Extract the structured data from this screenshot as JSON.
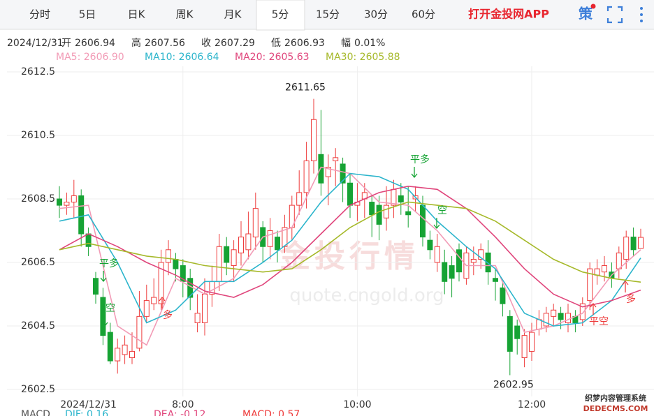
{
  "tabs": [
    "分时",
    "5日",
    "日K",
    "周K",
    "月K",
    "5分",
    "15分",
    "30分",
    "60分"
  ],
  "active_tab": 5,
  "app_link": "打开金投网APP",
  "strategy_icon": "策",
  "info": {
    "date": "2024/12/31",
    "open_label": "开",
    "high_label": "高",
    "close_label": "收",
    "low_label": "低",
    "change_label": "幅",
    "change": "0.01%"
  },
  "chart_data": {
    "type": "candlestick",
    "ylim": [
      2602.5,
      2612.5
    ],
    "yticks": [
      2612.5,
      2610.5,
      2608.5,
      2606.5,
      2604.5,
      2602.5
    ],
    "xlim": [
      -0.5,
      80.5
    ],
    "xticks": [
      {
        "value": 4,
        "label": "2024/12/31"
      },
      {
        "value": 17,
        "label": "8:00"
      },
      {
        "value": 41,
        "label": "10:00"
      },
      {
        "value": 65,
        "label": "12:00"
      }
    ],
    "grid": true,
    "up_color": "#ee3b3b",
    "down_color": "#16a334",
    "open": [
      2608.5,
      2608.3,
      2608.4,
      2608.6,
      2607.4,
      2606.0,
      2605.4,
      2604.3,
      2603.4,
      2603.6,
      2603.5,
      2603.8,
      2604.8,
      2605.2,
      2605.2,
      2606.5,
      2606.6,
      2606.4,
      2606.0,
      2604.6,
      2604.6,
      2605.5,
      2605.9,
      2607.0,
      2606.4,
      2606.8,
      2606.9,
      2607.3,
      2607.6,
      2607.0,
      2607.3,
      2607.0,
      2607.6,
      2608.3,
      2608.7,
      2609.7,
      2609.9,
      2609.2,
      2609.7,
      2609.6,
      2609.0,
      2608.3,
      2608.5,
      2608.4,
      2608.3,
      2607.9,
      2608.3,
      2608.6,
      2608.1,
      2608.5,
      2608.3,
      2607.2,
      2606.5,
      2606.5,
      2606.4,
      2606.9,
      2606.0,
      2606.5,
      2606.6,
      2606.8,
      2606.0,
      2605.7,
      2604.8,
      2604.5,
      2603.5,
      2603.7,
      2604.4,
      2604.5,
      2604.8,
      2604.9,
      2604.6,
      2604.8,
      2604.7,
      2605.3,
      2606.1,
      2606.2,
      2606.2,
      2606.3,
      2606.6,
      2607.3,
      2606.94
    ],
    "close": [
      2608.3,
      2608.4,
      2608.6,
      2607.4,
      2607.0,
      2605.5,
      2604.2,
      2603.4,
      2603.8,
      2603.9,
      2603.7,
      2604.8,
      2605.3,
      2605.4,
      2606.5,
      2606.9,
      2606.3,
      2605.9,
      2605.4,
      2604.9,
      2605.5,
      2605.9,
      2607.0,
      2606.5,
      2606.9,
      2607.3,
      2607.4,
      2608.2,
      2607.0,
      2607.5,
      2606.9,
      2607.6,
      2608.3,
      2608.7,
      2609.7,
      2611.0,
      2609.0,
      2609.5,
      2609.8,
      2609.0,
      2608.3,
      2608.4,
      2608.7,
      2608.0,
      2607.7,
      2608.3,
      2608.8,
      2608.4,
      2608.0,
      2608.6,
      2607.3,
      2606.9,
      2607.0,
      2605.9,
      2606.0,
      2606.2,
      2606.8,
      2606.6,
      2606.9,
      2606.2,
      2605.9,
      2605.2,
      2603.7,
      2604.1,
      2604.2,
      2604.3,
      2604.7,
      2604.9,
      2605.0,
      2604.7,
      2604.9,
      2604.6,
      2605.2,
      2606.3,
      2606.3,
      2606.4,
      2606.0,
      2606.8,
      2607.3,
      2606.9,
      2607.29
    ],
    "high": [
      2608.9,
      2608.7,
      2609.1,
      2608.8,
      2607.6,
      2606.2,
      2605.7,
      2604.6,
      2604.1,
      2604.2,
      2604.3,
      2605.6,
      2605.8,
      2606.0,
      2606.9,
      2607.2,
      2606.8,
      2606.6,
      2606.3,
      2605.5,
      2606.0,
      2606.4,
      2607.4,
      2607.3,
      2607.2,
      2607.8,
      2608.1,
      2608.7,
      2607.8,
      2607.9,
      2607.5,
      2608.0,
      2608.6,
      2609.4,
      2610.3,
      2611.65,
      2611.3,
      2609.9,
      2610.1,
      2609.8,
      2609.3,
      2609.0,
      2609.0,
      2608.6,
      2608.6,
      2608.9,
      2609.1,
      2609.0,
      2608.9,
      2608.9,
      2608.6,
      2607.5,
      2607.4,
      2606.9,
      2606.7,
      2607.1,
      2607.0,
      2607.0,
      2607.1,
      2607.2,
      2606.3,
      2605.9,
      2605.0,
      2604.7,
      2604.4,
      2604.6,
      2605.0,
      2605.1,
      2605.2,
      2605.1,
      2605.2,
      2605.0,
      2605.4,
      2606.5,
      2606.6,
      2606.7,
      2606.5,
      2607.0,
      2607.5,
      2607.6,
      2607.56
    ],
    "low": [
      2607.9,
      2608.0,
      2607.9,
      2607.0,
      2606.7,
      2605.2,
      2603.9,
      2603.3,
      2603.0,
      2603.3,
      2603.3,
      2603.7,
      2604.6,
      2605.0,
      2605.0,
      2606.1,
      2605.9,
      2605.4,
      2605.0,
      2604.3,
      2604.2,
      2605.1,
      2605.6,
      2606.1,
      2605.9,
      2606.4,
      2606.6,
      2606.9,
      2606.5,
      2606.6,
      2606.5,
      2606.8,
      2607.2,
      2608.0,
      2608.2,
      2609.3,
      2608.6,
      2608.3,
      2608.9,
      2608.4,
      2607.9,
      2607.8,
      2607.9,
      2607.3,
      2607.2,
      2607.5,
      2607.9,
      2608.0,
      2607.6,
      2608.1,
      2607.0,
      2606.6,
      2606.2,
      2605.5,
      2605.4,
      2605.9,
      2605.8,
      2606.1,
      2606.3,
      2605.8,
      2605.3,
      2604.8,
      2602.95,
      2603.6,
      2603.2,
      2603.4,
      2604.2,
      2604.3,
      2604.5,
      2604.4,
      2604.3,
      2604.3,
      2604.5,
      2605.0,
      2605.8,
      2605.9,
      2605.7,
      2606.0,
      2606.3,
      2606.7,
      2606.93
    ],
    "max_index": 35,
    "min_index": 62,
    "ma_x": [
      0,
      4,
      8,
      12,
      16,
      20,
      24,
      28,
      32,
      36,
      40,
      44,
      48,
      52,
      56,
      60,
      64,
      68,
      72,
      76,
      80
    ],
    "series": [
      {
        "name": "MA5",
        "latest": "2606.90",
        "color": "#f29bb6",
        "values": [
          2608.2,
          2608.3,
          2604.5,
          2603.9,
          2606.0,
          2605.5,
          2606.0,
          2607.3,
          2607.6,
          2609.5,
          2609.3,
          2608.4,
          2608.3,
          2607.5,
          2606.4,
          2606.4,
          2604.3,
          2604.5,
          2604.9,
          2606.1,
          2606.9
        ]
      },
      {
        "name": "MA10",
        "latest": "2606.64",
        "color": "#2cb5cc",
        "values": [
          2607.8,
          2608.0,
          2606.5,
          2604.6,
          2605.0,
          2605.9,
          2605.9,
          2606.5,
          2607.2,
          2608.4,
          2609.3,
          2609.2,
          2608.8,
          2607.8,
          2607.0,
          2606.3,
          2604.9,
          2604.5,
          2604.6,
          2605.3,
          2606.64
        ]
      },
      {
        "name": "MA20",
        "latest": "2605.63",
        "color": "#e0467c",
        "values": [
          2606.9,
          2607.4,
          2607.0,
          2606.5,
          2606.1,
          2605.6,
          2605.4,
          2605.8,
          2606.5,
          2607.4,
          2608.3,
          2608.7,
          2608.9,
          2608.8,
          2608.2,
          2607.3,
          2606.3,
          2605.5,
          2605.1,
          2605.3,
          2605.63
        ]
      },
      {
        "name": "MA30",
        "latest": "2605.88",
        "color": "#a6b92a",
        "values": [
          2606.9,
          2607.1,
          2606.9,
          2606.7,
          2606.6,
          2606.4,
          2606.3,
          2606.2,
          2606.3,
          2606.9,
          2607.6,
          2608.1,
          2608.4,
          2608.3,
          2608.2,
          2607.8,
          2607.2,
          2606.6,
          2606.2,
          2606.0,
          2605.88
        ]
      }
    ],
    "annotations": [
      {
        "text": "平多",
        "color": "#16a334"
      },
      {
        "text": "空",
        "color": "#16a334"
      },
      {
        "text": "多",
        "color": "#ee3b3b"
      },
      {
        "text": "平多",
        "color": "#16a334"
      },
      {
        "text": "空",
        "color": "#16a334"
      },
      {
        "text": "平空",
        "color": "#ee3b3b"
      },
      {
        "text": "多",
        "color": "#ee3b3b"
      }
    ],
    "watermark": "金投行情",
    "watermark_url": "quote.cngold.org"
  },
  "macd": {
    "title": "MACD",
    "dif": "DIF: 0.16",
    "dea": "DEA: -0.12",
    "macd": "MACD: 0.57"
  },
  "site_mark": {
    "line1": "织梦内容管理系统",
    "line2": "DEDECMS.COM"
  }
}
